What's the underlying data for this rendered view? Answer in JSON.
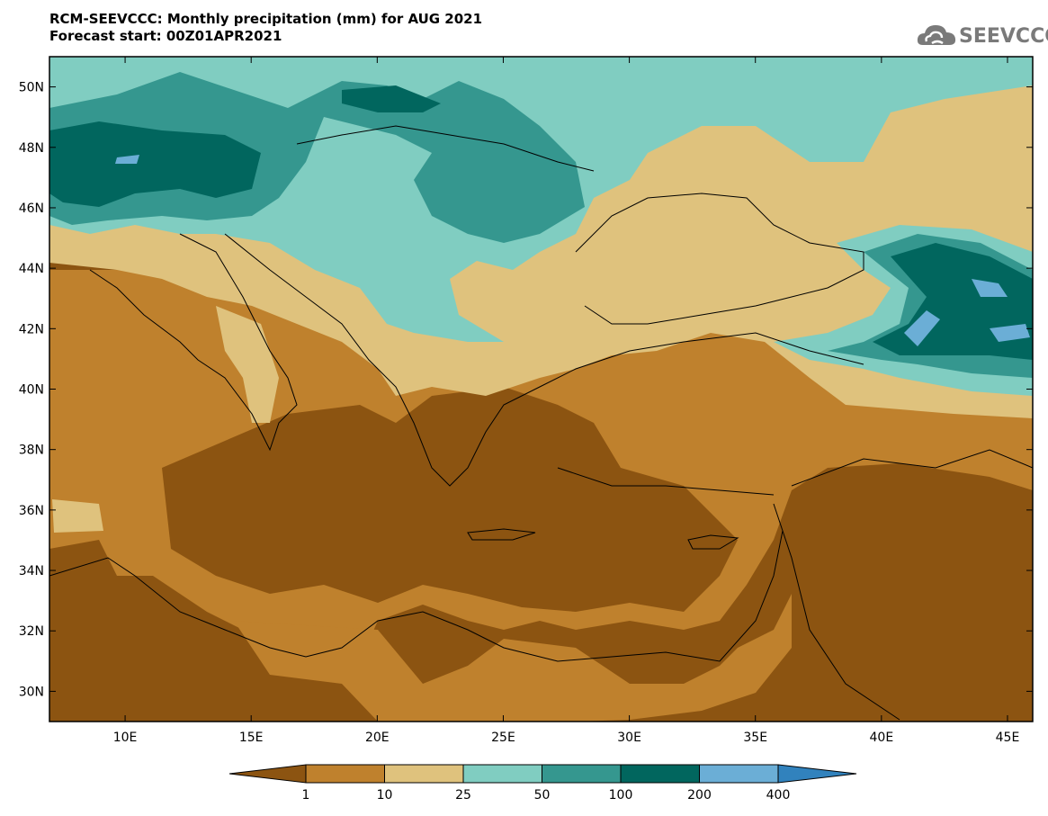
{
  "header": {
    "title_line1": "RCM-SEEVCCC: Monthly precipitation (mm) for AUG 2021",
    "title_line2": "Forecast start: 00Z01APR2021"
  },
  "logo": {
    "text": "SEEVCCC",
    "icon": "cloud-icon",
    "color": "#7a7a7a"
  },
  "map": {
    "lon_range": [
      7,
      46
    ],
    "lat_range": [
      29,
      51
    ],
    "lon_ticks": [
      {
        "value": 10,
        "label": "10E"
      },
      {
        "value": 15,
        "label": "15E"
      },
      {
        "value": 20,
        "label": "20E"
      },
      {
        "value": 25,
        "label": "25E"
      },
      {
        "value": 30,
        "label": "30E"
      },
      {
        "value": 35,
        "label": "35E"
      },
      {
        "value": 40,
        "label": "40E"
      },
      {
        "value": 45,
        "label": "45E"
      }
    ],
    "lat_ticks": [
      {
        "value": 30,
        "label": "30N"
      },
      {
        "value": 32,
        "label": "32N"
      },
      {
        "value": 34,
        "label": "34N"
      },
      {
        "value": 36,
        "label": "36N"
      },
      {
        "value": 38,
        "label": "38N"
      },
      {
        "value": 40,
        "label": "40N"
      },
      {
        "value": 42,
        "label": "42N"
      },
      {
        "value": 44,
        "label": "44N"
      },
      {
        "value": 46,
        "label": "46N"
      },
      {
        "value": 48,
        "label": "48N"
      },
      {
        "value": 50,
        "label": "50N"
      }
    ]
  },
  "legend": {
    "colors": [
      "#8c5411",
      "#bf812d",
      "#dfc27d",
      "#80cdc1",
      "#35978f",
      "#01665e",
      "#6baed6",
      "#3182bd"
    ],
    "labels": [
      "1",
      "10",
      "25",
      "50",
      "100",
      "200",
      "400"
    ]
  }
}
